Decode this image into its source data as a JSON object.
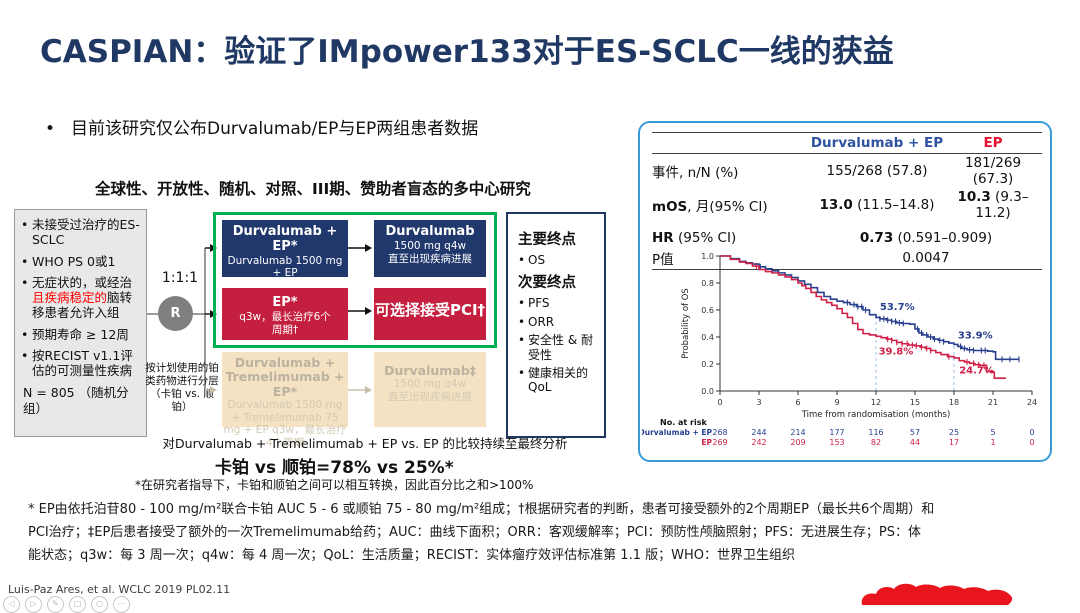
{
  "slide": {
    "title": "CASPIAN：验证了IMpower133对于ES-SCLC一线的获益",
    "bullet_marker": "•",
    "bullet": "目前该研究仅公布Durvalumab/EP与EP两组患者数据",
    "study_header": "全球性、开放性、随机、对照、III期、赞助者盲态的多中心研究",
    "comparison_note": "对Durvalumab + Tremelimumab + EP  vs. EP 的比较持续至最终分析",
    "carbo_line": "卡铂 vs 顺铂=78% vs 25%*",
    "carbo_footnote": "*在研究者指导下，卡铂和顺铂之间可以相互转换，因此百分比之和>100%",
    "footnotes": [
      "* EP由依托泊苷80 - 100 mg/m²联合卡铂 AUC 5 - 6 或顺铂 75 - 80 mg/m²组成；†根据研究者的判断，患者可接受额外的2个周期EP（最长共6个周期）和",
      "PCI治疗；‡EP后患者接受了额外的一次Tremelimumab给药；AUC：曲线下面积；ORR：客观缓解率；PCI：预防性颅脑照射；PFS：无进展生存；PS：体",
      "能状态；q3w：每 3 周一次；q4w：每 4 周一次；QoL：生活质量；RECIST：实体瘤疗效评估标准第 1.1 版；WHO：世界卫生组织"
    ],
    "citation": "Luis-Paz Ares, et al. WCLC 2019 PL02.11"
  },
  "eligibility": {
    "item1": "未接受过治疗的ES-SCLC",
    "item2": "WHO PS 0或1",
    "item3_pre": "无症状的，或经治",
    "item3_red": "且疾病稳定的",
    "item3_post": "脑转移患者允许入组",
    "item4": "预期寿命 ≥ 12周",
    "item5": "按RECIST v1.1评估的可测量性疾病",
    "n_text": "N = 805 （随机分组）"
  },
  "randomization": {
    "ratio": "1:1:1",
    "r": "R",
    "stratification": "按计划使用的铂类药物进行分层（卡铂 vs. 顺铂）"
  },
  "arms": {
    "a1_title": "Durvalumab + EP*",
    "a1_l2": "Durvalumab 1500 mg + EP",
    "a1_l3": "q3w，最长治疗4个周期",
    "a1f_title": "Durvalumab",
    "a1f_l2": "1500 mg q4w",
    "a1f_l3": "直至出现疾病进展",
    "a2_title": "EP*",
    "a2_l2": "q3w，最长治疗6个",
    "a2_l3": "周期†",
    "a2f_title": "可选择接受PCI†",
    "a3_title": "Durvalumab + Tremelimumab + EP*",
    "a3_body": "Durvalumab 1500 mg + Tremelimumab 75 mg + EP q3w，最长治疗4个周期",
    "a3f_title": "Durvalumab‡",
    "a3f_l2": "1500 mg q4w",
    "a3f_l3": "直至出现疾病进展"
  },
  "endpoints": {
    "primary_title": "主要终点",
    "primary_items": [
      "OS"
    ],
    "secondary_title": "次要终点",
    "secondary_items": [
      "PFS",
      "ORR",
      "安全性 & 耐受性",
      "健康相关的QoL"
    ]
  },
  "results_table": {
    "header": {
      "col1": "Durvalumab + EP",
      "col2": "EP"
    },
    "r1": {
      "label": "事件, n/N (%)",
      "v1": "155/268 (57.8)",
      "v2": "181/269 (67.3)"
    },
    "r2": {
      "label_b": "mOS",
      "label_r": ", 月(95% CI)",
      "v1_b": "13.0",
      "v1_r": " (11.5–14.8)",
      "v2_b": "10.3",
      "v2_r": " (9.3–11.2)"
    },
    "r3": {
      "label_b": "HR",
      "label_r": " (95% CI)",
      "v_b": "0.73",
      "v_r": " (0.591–0.909)"
    },
    "r4": {
      "label": "P值",
      "v": "0.0047"
    }
  },
  "chart_data": {
    "type": "line",
    "subtype": "kaplan-meier",
    "xlabel": "Time from randomisation (months)",
    "ylabel": "Probability of OS",
    "xlim": [
      0,
      24
    ],
    "ylim": [
      0.0,
      1.0
    ],
    "xticks": [
      0,
      3,
      6,
      9,
      12,
      15,
      18,
      21,
      24
    ],
    "yticks": [
      0.0,
      0.2,
      0.4,
      0.6,
      0.8,
      1.0
    ],
    "dashed": [
      {
        "x": 12,
        "top": 0.545
      },
      {
        "x": 18,
        "top": 0.345
      }
    ],
    "series": [
      {
        "name": "Durvalumab + EP",
        "color": "#28408F",
        "points": [
          [
            0,
            1.0
          ],
          [
            0.8,
            0.98
          ],
          [
            1.5,
            0.96
          ],
          [
            2,
            0.95
          ],
          [
            2.5,
            0.94
          ],
          [
            3,
            0.92
          ],
          [
            3.5,
            0.905
          ],
          [
            4,
            0.89
          ],
          [
            4.5,
            0.875
          ],
          [
            5,
            0.86
          ],
          [
            5.5,
            0.84
          ],
          [
            6,
            0.815
          ],
          [
            6.5,
            0.79
          ],
          [
            7,
            0.765
          ],
          [
            7.5,
            0.73
          ],
          [
            8,
            0.7
          ],
          [
            8.5,
            0.68
          ],
          [
            9,
            0.665
          ],
          [
            9.5,
            0.655
          ],
          [
            10,
            0.64
          ],
          [
            10.5,
            0.625
          ],
          [
            11,
            0.6
          ],
          [
            11.5,
            0.565
          ],
          [
            12,
            0.545
          ],
          [
            12.3,
            0.535
          ],
          [
            12.8,
            0.525
          ],
          [
            13.2,
            0.515
          ],
          [
            13.6,
            0.505
          ],
          [
            14,
            0.5
          ],
          [
            14.6,
            0.495
          ],
          [
            15,
            0.46
          ],
          [
            15.3,
            0.43
          ],
          [
            15.6,
            0.415
          ],
          [
            16,
            0.4
          ],
          [
            16.4,
            0.385
          ],
          [
            16.8,
            0.375
          ],
          [
            17.2,
            0.365
          ],
          [
            17.6,
            0.355
          ],
          [
            18,
            0.345
          ],
          [
            18.3,
            0.33
          ],
          [
            18.6,
            0.315
          ],
          [
            19,
            0.305
          ],
          [
            19.5,
            0.3
          ],
          [
            20.6,
            0.295
          ],
          [
            21,
            0.29
          ],
          [
            21.2,
            0.235
          ],
          [
            23,
            0.235
          ]
        ],
        "censor": [
          3.1,
          3.5,
          4.0,
          9.8,
          10.3,
          10.6,
          10.9,
          11.2,
          12.3,
          12.6,
          12.9,
          13.2,
          13.5,
          13.8,
          14.1,
          15.2,
          15.5,
          15.9,
          16.2,
          16.5,
          16.9,
          17.2,
          18.5,
          18.8,
          19.2,
          19.5,
          20.1,
          20.4,
          21.7,
          22.3,
          23.0
        ]
      },
      {
        "name": "EP",
        "color": "#D02048",
        "points": [
          [
            0,
            1.0
          ],
          [
            0.8,
            0.975
          ],
          [
            1.5,
            0.955
          ],
          [
            2,
            0.945
          ],
          [
            2.5,
            0.925
          ],
          [
            3,
            0.9
          ],
          [
            3.5,
            0.885
          ],
          [
            4,
            0.875
          ],
          [
            4.5,
            0.86
          ],
          [
            5,
            0.845
          ],
          [
            5.5,
            0.825
          ],
          [
            6,
            0.8
          ],
          [
            6.3,
            0.78
          ],
          [
            6.6,
            0.76
          ],
          [
            7,
            0.73
          ],
          [
            7.4,
            0.7
          ],
          [
            7.8,
            0.675
          ],
          [
            8.2,
            0.655
          ],
          [
            8.6,
            0.635
          ],
          [
            9,
            0.61
          ],
          [
            9.4,
            0.575
          ],
          [
            9.8,
            0.545
          ],
          [
            10.2,
            0.5
          ],
          [
            10.6,
            0.455
          ],
          [
            11,
            0.425
          ],
          [
            11.5,
            0.415
          ],
          [
            12,
            0.405
          ],
          [
            12.4,
            0.395
          ],
          [
            12.8,
            0.385
          ],
          [
            13.2,
            0.375
          ],
          [
            13.6,
            0.36
          ],
          [
            14,
            0.35
          ],
          [
            14.5,
            0.34
          ],
          [
            15,
            0.335
          ],
          [
            15.4,
            0.325
          ],
          [
            15.8,
            0.315
          ],
          [
            16.2,
            0.3
          ],
          [
            16.6,
            0.285
          ],
          [
            17,
            0.27
          ],
          [
            17.5,
            0.255
          ],
          [
            18,
            0.245
          ],
          [
            18.4,
            0.225
          ],
          [
            18.8,
            0.215
          ],
          [
            19.2,
            0.205
          ],
          [
            19.6,
            0.195
          ],
          [
            20,
            0.19
          ],
          [
            20.5,
            0.145
          ],
          [
            20.9,
            0.14
          ],
          [
            21.1,
            0.095
          ],
          [
            22,
            0.095
          ]
        ],
        "censor": [
          2.8,
          12.9,
          13.2,
          13.6,
          14.0,
          14.4,
          14.8,
          15.1,
          15.5,
          15.9,
          16.2,
          17.6,
          19.0,
          19.5,
          19.9,
          20.3
        ]
      }
    ],
    "annotations": [
      {
        "text": "53.7%",
        "x": 12.3,
        "y": 0.6,
        "color": "#28408F"
      },
      {
        "text": "33.9%",
        "x": 18.3,
        "y": 0.39,
        "color": "#28408F"
      },
      {
        "text": "39.8%",
        "x": 12.2,
        "y": 0.27,
        "color": "#D02048"
      },
      {
        "text": "24.7%",
        "x": 18.4,
        "y": 0.13,
        "color": "#D02048"
      }
    ],
    "risk_table": {
      "header": "No. at risk",
      "rows": [
        {
          "name": "Durvalumab + EP",
          "color": "#28408F",
          "values": [
            268,
            244,
            214,
            177,
            116,
            57,
            25,
            5,
            0
          ]
        },
        {
          "name": "EP",
          "color": "#D02048",
          "values": [
            269,
            242,
            209,
            153,
            82,
            44,
            17,
            1,
            0
          ]
        }
      ]
    }
  },
  "viewer_controls": [
    {
      "name": "prev-page-button",
      "glyph": "◁"
    },
    {
      "name": "next-page-button",
      "glyph": "▷"
    },
    {
      "name": "pen-annotate-button",
      "glyph": "✎"
    },
    {
      "name": "print-button",
      "glyph": "□"
    },
    {
      "name": "zoom-button",
      "glyph": "○"
    },
    {
      "name": "more-button",
      "glyph": "⋯"
    }
  ],
  "colors": {
    "title_navy": "#1F3864",
    "arm_navy": "#20386B",
    "arm_red": "#C51F3F",
    "highlight_green": "#00B050",
    "faded_tan": "#F5E2C2",
    "panel_border": "#389CD8",
    "curve_blue": "#28408F",
    "curve_red": "#D02048",
    "ink_annotation_red": "#E8151E"
  }
}
